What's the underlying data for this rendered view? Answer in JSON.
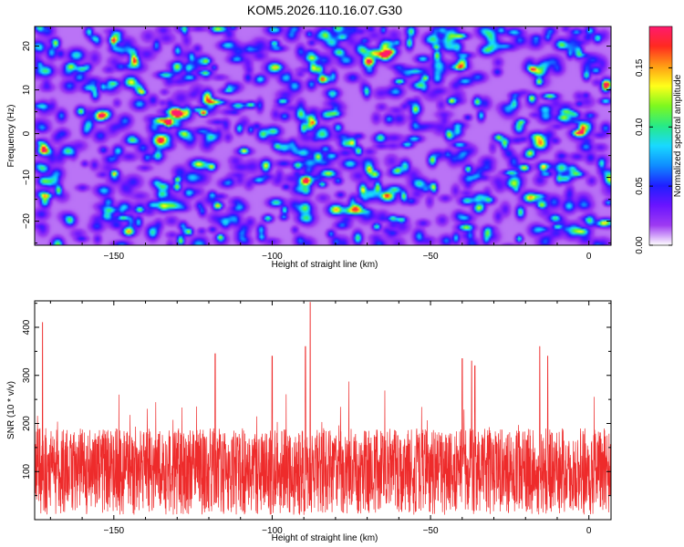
{
  "title": "KOM5.2026.110.16.07.G30",
  "colors": {
    "line": "#ee2b2b",
    "axis": "#000000",
    "background": "#ffffff"
  },
  "chart_data": [
    {
      "type": "heatmap",
      "xlabel": "Height of straight line (km)",
      "ylabel": "Frequency (Hz)",
      "xlim": [
        -175,
        7
      ],
      "ylim": [
        -25.5,
        24.5
      ],
      "xticks": [
        -150,
        -100,
        -50,
        0
      ],
      "yticks": [
        -20,
        -10,
        0,
        10,
        20
      ],
      "colorbar": {
        "label": "Normalized spectral amplitude",
        "range": [
          0.0,
          0.185
        ],
        "ticks": [
          "0.00",
          "0.05",
          "0.10",
          "0.15"
        ],
        "tick_values": [
          0.0,
          0.05,
          0.1,
          0.15
        ],
        "colormap": [
          "#ffffff",
          "#9e3bf2",
          "#6a14ff",
          "#1f1fff",
          "#0f8cff",
          "#19d9ff",
          "#27ea86",
          "#7df81f",
          "#ffff1a",
          "#ff9d14",
          "#ff2a20",
          "#ff1a6e"
        ]
      },
      "description_values": {
        "background_level": 0.012,
        "peak_value": 0.18,
        "peak_location": [
          -122,
          5
        ]
      }
    },
    {
      "type": "line",
      "xlabel": "Height of straight line (km)",
      "ylabel": "SNR (10 * v/v)",
      "xlim": [
        -175,
        7
      ],
      "ylim": [
        0,
        455
      ],
      "xticks": [
        -150,
        -100,
        -50,
        0
      ],
      "yticks": [
        100,
        200,
        300,
        400
      ],
      "series": [
        {
          "name": "SNR",
          "baseline": 100,
          "noise_amplitude": 90,
          "peaks": [
            {
              "x": -172.5,
              "y": 410
            },
            {
              "x": -88,
              "y": 452
            },
            {
              "x": -89.5,
              "y": 360
            },
            {
              "x": -15.5,
              "y": 360
            },
            {
              "x": -13,
              "y": 340
            },
            {
              "x": -118,
              "y": 345
            },
            {
              "x": -100,
              "y": 340
            },
            {
              "x": -40,
              "y": 335
            },
            {
              "x": -37,
              "y": 330
            },
            {
              "x": -36,
              "y": 320
            }
          ]
        }
      ]
    }
  ]
}
